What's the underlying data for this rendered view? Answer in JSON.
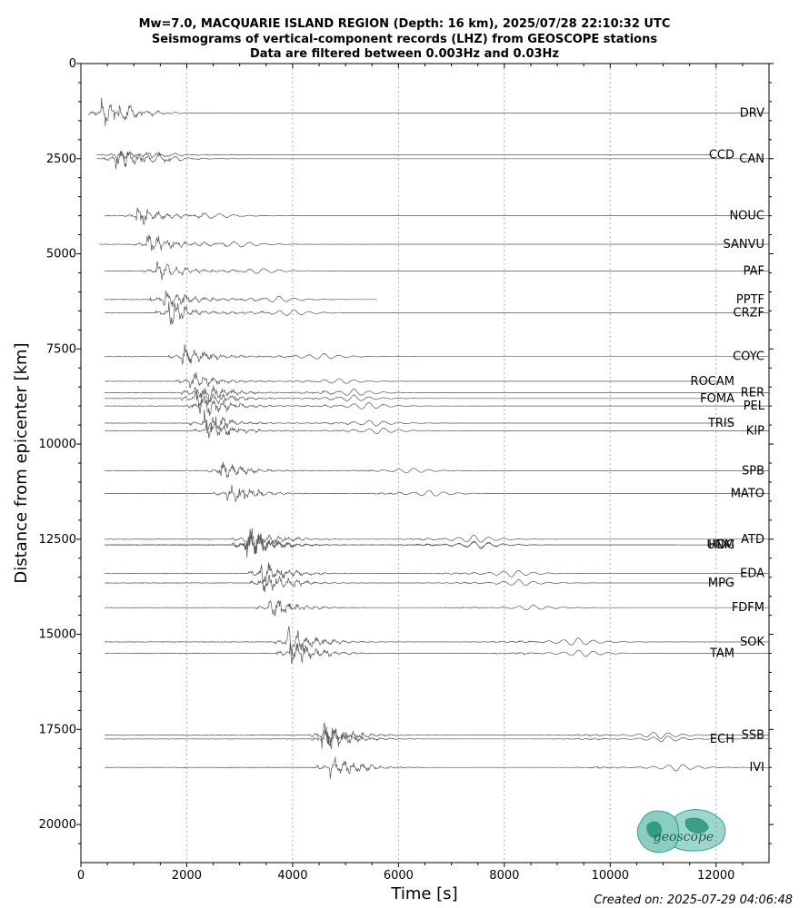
{
  "chart_data": {
    "type": "line",
    "title_lines": [
      "Mw=7.0, MACQUARIE ISLAND REGION (Depth: 16 km), 2025/07/28 22:10:32 UTC",
      "Seismograms of vertical-component records (LHZ) from GEOSCOPE stations",
      "Data are filtered between 0.003Hz and 0.03Hz"
    ],
    "xlabel": "Time [s]",
    "ylabel": "Distance from epicenter [km]",
    "xlim": [
      0,
      13000
    ],
    "ylim": [
      21000,
      0
    ],
    "x_ticks": [
      0,
      2000,
      4000,
      6000,
      8000,
      10000,
      12000
    ],
    "x_tick_labels": [
      "0",
      "2000",
      "4000",
      "6000",
      "8000",
      "10000",
      "12000"
    ],
    "y_ticks": [
      0,
      2500,
      5000,
      7500,
      10000,
      12500,
      15000,
      17500,
      20000
    ],
    "y_tick_labels": [
      "0",
      "2500",
      "5000",
      "7500",
      "10000",
      "12500",
      "15000",
      "17500",
      "20000"
    ],
    "grid": "vertical dotted",
    "stations": [
      {
        "name": "DRV",
        "distance_km": 1300,
        "label_side": "right",
        "trace_start_s": 150,
        "trace_end_s": 13000,
        "arrival_s": 380,
        "amplitude_km": 400
      },
      {
        "name": "CCD",
        "distance_km": 2400,
        "label_side": "left",
        "trace_start_s": 300,
        "trace_end_s": 11950,
        "arrival_s": 650,
        "amplitude_km": 200
      },
      {
        "name": "CAN",
        "distance_km": 2500,
        "label_side": "right",
        "trace_start_s": 300,
        "trace_end_s": 13000,
        "arrival_s": 650,
        "amplitude_km": 350
      },
      {
        "name": "NOUC",
        "distance_km": 4000,
        "label_side": "right",
        "trace_start_s": 450,
        "trace_end_s": 13000,
        "arrival_s": 1050,
        "amplitude_km": 300
      },
      {
        "name": "SANVU",
        "distance_km": 4750,
        "label_side": "right",
        "trace_start_s": 350,
        "trace_end_s": 13000,
        "arrival_s": 1250,
        "amplitude_km": 330
      },
      {
        "name": "PAF",
        "distance_km": 5450,
        "label_side": "right",
        "trace_start_s": 450,
        "trace_end_s": 13000,
        "arrival_s": 1420,
        "amplitude_km": 300
      },
      {
        "name": "PPTF",
        "distance_km": 6200,
        "label_side": "right",
        "trace_start_s": 450,
        "trace_end_s": 5600,
        "arrival_s": 1550,
        "amplitude_km": 350
      },
      {
        "name": "CRZF",
        "distance_km": 6550,
        "label_side": "right",
        "trace_start_s": 450,
        "trace_end_s": 13000,
        "arrival_s": 1650,
        "amplitude_km": 350
      },
      {
        "name": "COYC",
        "distance_km": 7700,
        "label_side": "right",
        "trace_start_s": 450,
        "trace_end_s": 13000,
        "arrival_s": 1900,
        "amplitude_km": 350
      },
      {
        "name": "ROCAM",
        "distance_km": 8350,
        "label_side": "left",
        "trace_start_s": 450,
        "trace_end_s": 12050,
        "arrival_s": 2050,
        "amplitude_km": 300
      },
      {
        "name": "RER",
        "distance_km": 8650,
        "label_side": "right",
        "trace_start_s": 450,
        "trace_end_s": 13000,
        "arrival_s": 2150,
        "amplitude_km": 400
      },
      {
        "name": "FOMA",
        "distance_km": 8800,
        "label_side": "left",
        "trace_start_s": 450,
        "trace_end_s": 11950,
        "arrival_s": 2150,
        "amplitude_km": 350
      },
      {
        "name": "PEL",
        "distance_km": 9000,
        "label_side": "right",
        "trace_start_s": 450,
        "trace_end_s": 13000,
        "arrival_s": 2250,
        "amplitude_km": 400
      },
      {
        "name": "TRIS",
        "distance_km": 9450,
        "label_side": "left",
        "trace_start_s": 450,
        "trace_end_s": 12350,
        "arrival_s": 2300,
        "amplitude_km": 350
      },
      {
        "name": "KIP",
        "distance_km": 9650,
        "label_side": "right",
        "trace_start_s": 450,
        "trace_end_s": 13000,
        "arrival_s": 2350,
        "amplitude_km": 350
      },
      {
        "name": "SPB",
        "distance_km": 10700,
        "label_side": "right",
        "trace_start_s": 450,
        "trace_end_s": 13000,
        "arrival_s": 2600,
        "amplitude_km": 300
      },
      {
        "name": "MATO",
        "distance_km": 11300,
        "label_side": "right",
        "trace_start_s": 450,
        "trace_end_s": 13000,
        "arrival_s": 2750,
        "amplitude_km": 350
      },
      {
        "name": "ATD",
        "distance_km": 12500,
        "label_side": "right",
        "trace_start_s": 450,
        "trace_end_s": 13000,
        "arrival_s": 3100,
        "amplitude_km": 450
      },
      {
        "name": "UNM",
        "distance_km": 12650,
        "label_side": "left",
        "trace_start_s": 450,
        "trace_end_s": 11250,
        "arrival_s": 3100,
        "amplitude_km": 400
      },
      {
        "name": "HDC",
        "distance_km": 12650,
        "label_side": "left",
        "trace_start_s": 450,
        "trace_end_s": 12350,
        "arrival_s": 3150,
        "amplitude_km": 400
      },
      {
        "name": "EDA",
        "distance_km": 13400,
        "label_side": "right",
        "trace_start_s": 450,
        "trace_end_s": 13000,
        "arrival_s": 3400,
        "amplitude_km": 400
      },
      {
        "name": "MPG",
        "distance_km": 13650,
        "label_side": "left",
        "trace_start_s": 450,
        "trace_end_s": 12350,
        "arrival_s": 3450,
        "amplitude_km": 350
      },
      {
        "name": "FDFM",
        "distance_km": 14300,
        "label_side": "right",
        "trace_start_s": 450,
        "trace_end_s": 13000,
        "arrival_s": 3550,
        "amplitude_km": 300
      },
      {
        "name": "SOK",
        "distance_km": 15200,
        "label_side": "right",
        "trace_start_s": 450,
        "trace_end_s": 13000,
        "arrival_s": 3900,
        "amplitude_km": 450
      },
      {
        "name": "TAM",
        "distance_km": 15500,
        "label_side": "left",
        "trace_start_s": 450,
        "trace_end_s": 13000,
        "arrival_s": 3950,
        "amplitude_km": 400
      },
      {
        "name": "SSB",
        "distance_km": 17650,
        "label_side": "right",
        "trace_start_s": 450,
        "trace_end_s": 13000,
        "arrival_s": 4550,
        "amplitude_km": 400
      },
      {
        "name": "ECH",
        "distance_km": 17750,
        "label_side": "left",
        "trace_start_s": 450,
        "trace_end_s": 13000,
        "arrival_s": 4600,
        "amplitude_km": 350
      },
      {
        "name": "IVI",
        "distance_km": 18500,
        "label_side": "right",
        "trace_start_s": 450,
        "trace_end_s": 13000,
        "arrival_s": 4700,
        "amplitude_km": 400
      }
    ]
  },
  "footer": {
    "created": "Created on: 2025-07-29 04:06:48",
    "logo_text": "geoscope"
  },
  "colors": {
    "trace": "#555555",
    "axis": "#000000",
    "grid": "#b0b0b0",
    "logo": "#2aa58f"
  }
}
